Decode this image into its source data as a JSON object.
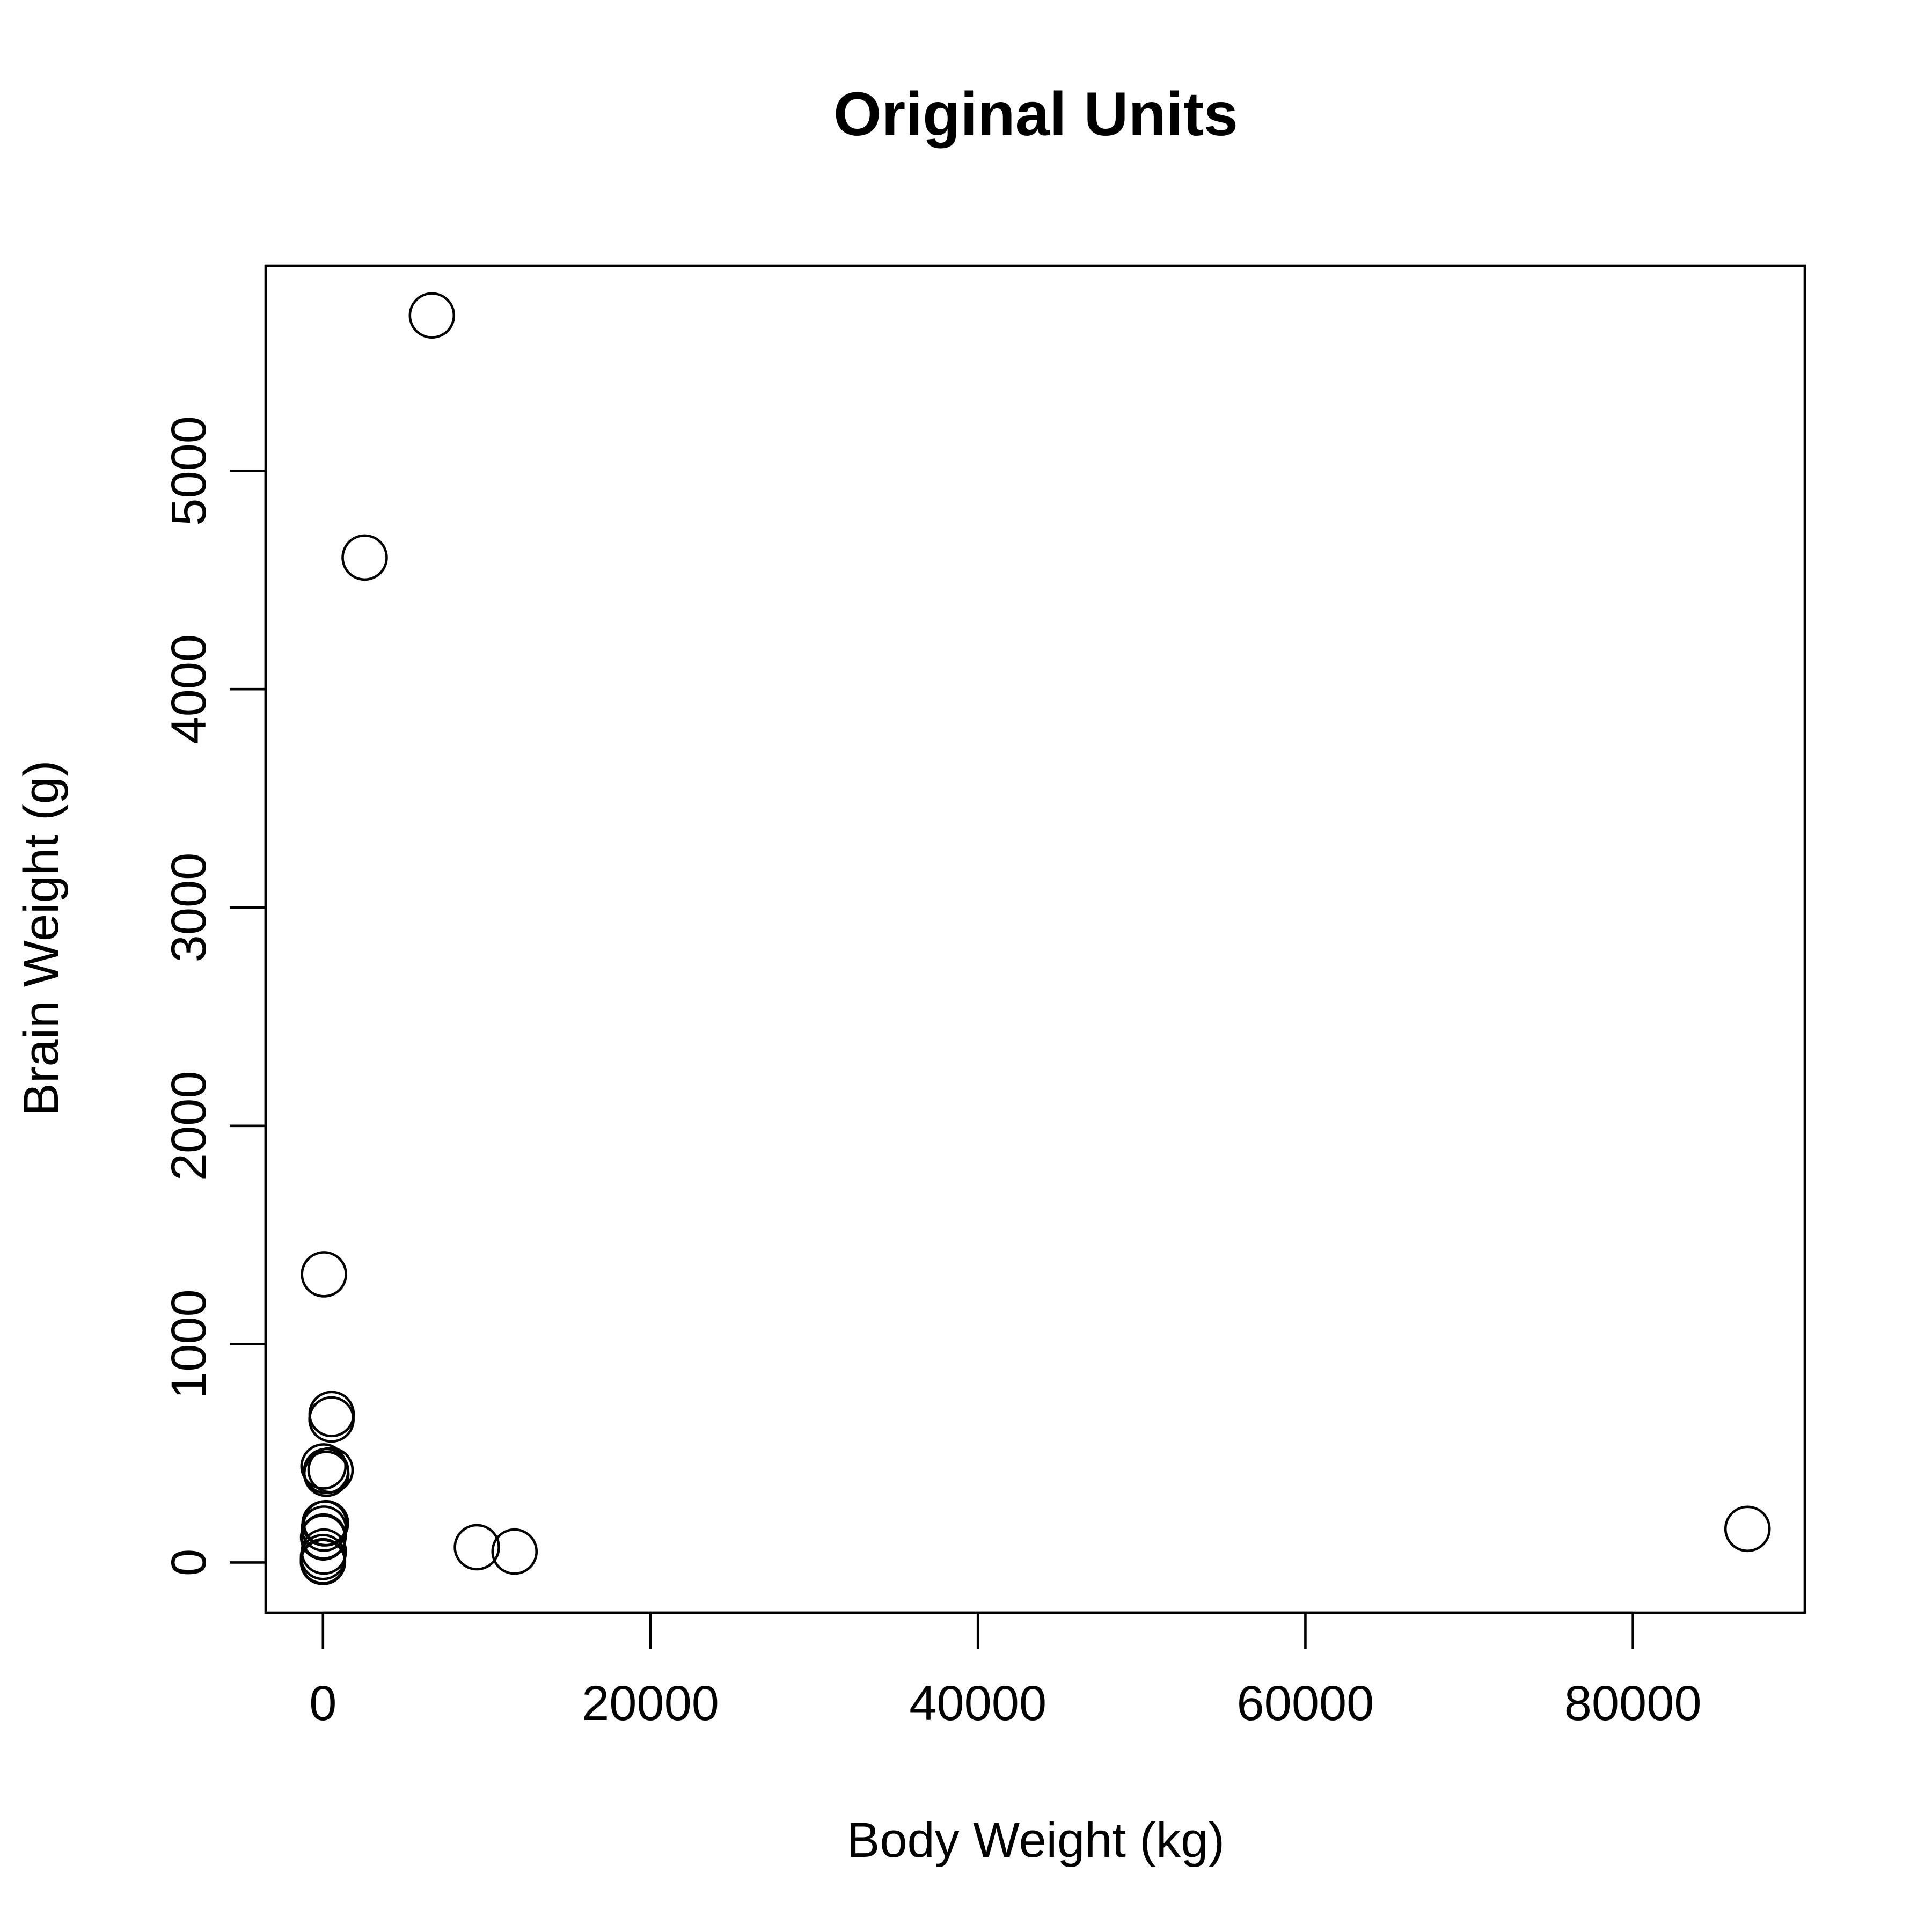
{
  "chart_data": {
    "type": "scatter",
    "title": "Original Units",
    "xlabel": "Body Weight (kg)",
    "ylabel": "Brain Weight (g)",
    "xlim": [
      -3500,
      90500
    ],
    "ylim": [
      -230,
      5940
    ],
    "x_ticks": [
      0,
      20000,
      40000,
      60000,
      80000
    ],
    "x_tick_labels": [
      "0",
      "20000",
      "40000",
      "60000",
      "80000"
    ],
    "y_ticks": [
      0,
      1000,
      2000,
      3000,
      4000,
      5000
    ],
    "y_tick_labels": [
      "0",
      "1000",
      "2000",
      "3000",
      "4000",
      "5000"
    ],
    "grid": false,
    "legend": "none",
    "marker": "open-circle",
    "color": "#000000",
    "points": [
      {
        "x": 6654,
        "y": 5712
      },
      {
        "x": 2547,
        "y": 4603
      },
      {
        "x": 62,
        "y": 1320
      },
      {
        "x": 529,
        "y": 680
      },
      {
        "x": 521,
        "y": 655
      },
      {
        "x": 35,
        "y": 440
      },
      {
        "x": 192,
        "y": 419
      },
      {
        "x": 465,
        "y": 423
      },
      {
        "x": 207,
        "y": 406
      },
      {
        "x": 100,
        "y": 179
      },
      {
        "x": 187,
        "y": 180
      },
      {
        "x": 62,
        "y": 155
      },
      {
        "x": 36,
        "y": 119
      },
      {
        "x": 10,
        "y": 115
      },
      {
        "x": 27,
        "y": 115
      },
      {
        "x": 55,
        "y": 50
      },
      {
        "x": 1,
        "y": 6
      },
      {
        "x": 3,
        "y": 25
      },
      {
        "x": 0.5,
        "y": 2
      },
      {
        "x": 9400,
        "y": 70
      },
      {
        "x": 11700,
        "y": 50
      },
      {
        "x": 87000,
        "y": 154
      }
    ]
  }
}
